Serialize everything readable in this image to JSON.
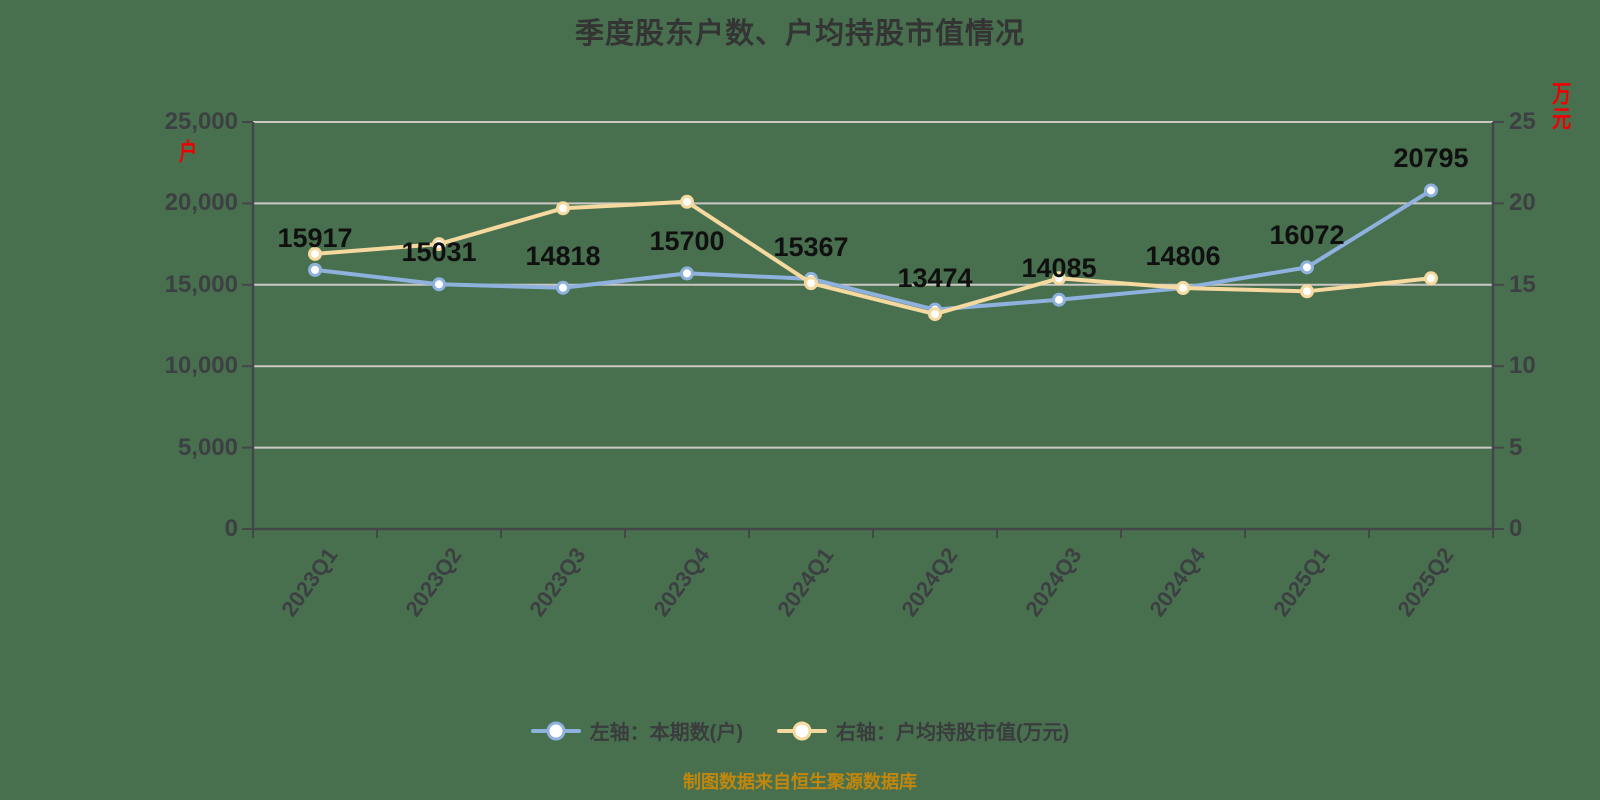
{
  "title": "季度股东户数、户均持股市值情况",
  "footer": "制图数据来自恒生聚源数据库",
  "chart_data": {
    "type": "line",
    "categories": [
      "2023Q1",
      "2023Q2",
      "2023Q3",
      "2023Q4",
      "2024Q1",
      "2024Q2",
      "2024Q3",
      "2024Q4",
      "2025Q1",
      "2025Q2"
    ],
    "series": [
      {
        "name": "左轴：本期数(户)",
        "axis": "left",
        "color": "#8FB1DD",
        "values": [
          15917,
          15031,
          14818,
          15700,
          15367,
          13474,
          14085,
          14806,
          16072,
          20795
        ],
        "show_labels": true
      },
      {
        "name": "右轴：户均持股市值(万元)",
        "axis": "right",
        "color": "#F6D99F",
        "values": [
          16.9,
          17.5,
          19.7,
          20.1,
          15.1,
          13.2,
          15.4,
          14.8,
          14.6,
          15.4
        ],
        "show_labels": false
      }
    ],
    "left_axis": {
      "unit": "户",
      "min": 0,
      "max": 25000,
      "tick_labels": [
        "0",
        "5,000",
        "10,000",
        "15,000",
        "20,000",
        "25,000"
      ]
    },
    "right_axis": {
      "unit": "万元",
      "min": 0,
      "max": 25,
      "tick_labels": [
        "0",
        "5",
        "10",
        "15",
        "20",
        "25"
      ]
    },
    "grid": true,
    "legend_position": "bottom"
  },
  "colors": {
    "background": "#48704F",
    "grid": "#CBC7C3",
    "axis": "#44474A",
    "tick_text": "#3D4043",
    "title_text": "#343434",
    "data_label": "#101010",
    "legend_text": "#3A3C3E",
    "unit_text": "#EE0000",
    "footer_text": "#C1870D",
    "marker_fill": "#FFFFFF"
  }
}
